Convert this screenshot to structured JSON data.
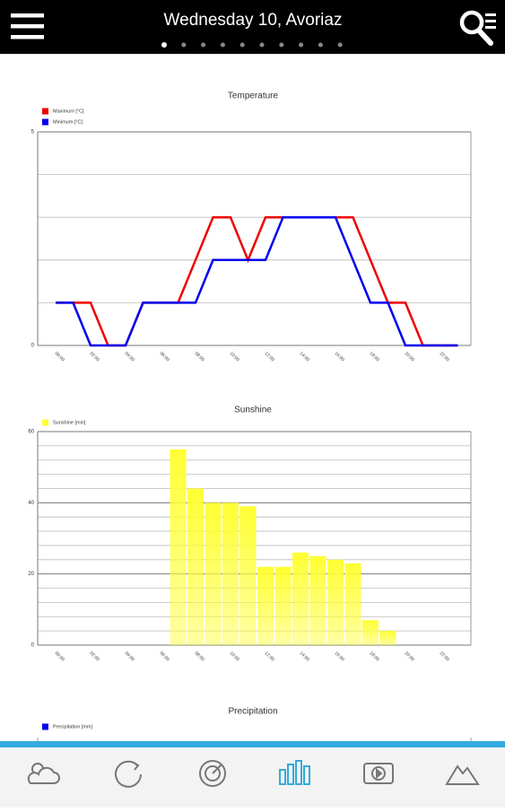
{
  "header": {
    "title": "Wednesday 10, Avoriaz",
    "pages": 10,
    "active_page": 0
  },
  "chart_data": [
    {
      "type": "line",
      "title": "Temperature",
      "categories": [
        "00:00",
        null,
        "02:00",
        null,
        "04:00",
        null,
        "06:00",
        null,
        "08:00",
        null,
        "10:00",
        null,
        "12:00",
        null,
        "14:00",
        null,
        "16:00",
        null,
        "18:00",
        null,
        "20:00",
        null,
        "22:00",
        null
      ],
      "series": [
        {
          "name": "Maximum [°C]",
          "color": "#ee0000",
          "values": [
            1,
            1,
            1,
            0,
            0,
            1,
            1,
            1,
            2,
            3,
            3,
            2,
            3,
            3,
            3,
            3,
            3,
            3,
            2,
            1,
            1,
            0,
            0,
            0
          ]
        },
        {
          "name": "Minimum [°C]",
          "color": "#0000ee",
          "values": [
            1,
            1,
            0,
            0,
            0,
            1,
            1,
            1,
            1,
            2,
            2,
            2,
            2,
            3,
            3,
            3,
            3,
            2,
            1,
            1,
            0,
            0,
            0,
            0
          ]
        }
      ],
      "ylim": [
        0,
        5
      ],
      "yticks": [
        0,
        5
      ],
      "ygrid": [
        1,
        2,
        3,
        4
      ]
    },
    {
      "type": "bar",
      "title": "Sunshine",
      "categories": [
        "00:00",
        null,
        "02:00",
        null,
        "04:00",
        null,
        "06:00",
        null,
        "08:00",
        null,
        "10:00",
        null,
        "12:00",
        null,
        "14:00",
        null,
        "16:00",
        null,
        "18:00",
        null,
        "20:00",
        null,
        "22:00",
        null
      ],
      "series": [
        {
          "name": "Sunshine [min]",
          "color": "#ffff33",
          "values": [
            0,
            0,
            0,
            0,
            0,
            0,
            0,
            55,
            44,
            40,
            40,
            39,
            22,
            22,
            26,
            25,
            24,
            23,
            7,
            4,
            0,
            0,
            0,
            0
          ]
        }
      ],
      "ylim": [
        0,
        60
      ],
      "yticks": [
        0,
        20,
        40,
        60
      ],
      "ygrid": [
        4,
        8,
        12,
        16,
        24,
        28,
        32,
        36,
        44,
        48,
        52,
        56
      ]
    },
    {
      "type": "bar",
      "title": "Precipitation",
      "series": [
        {
          "name": "Precipitation [mm]",
          "color": "#0000ee"
        }
      ]
    }
  ]
}
